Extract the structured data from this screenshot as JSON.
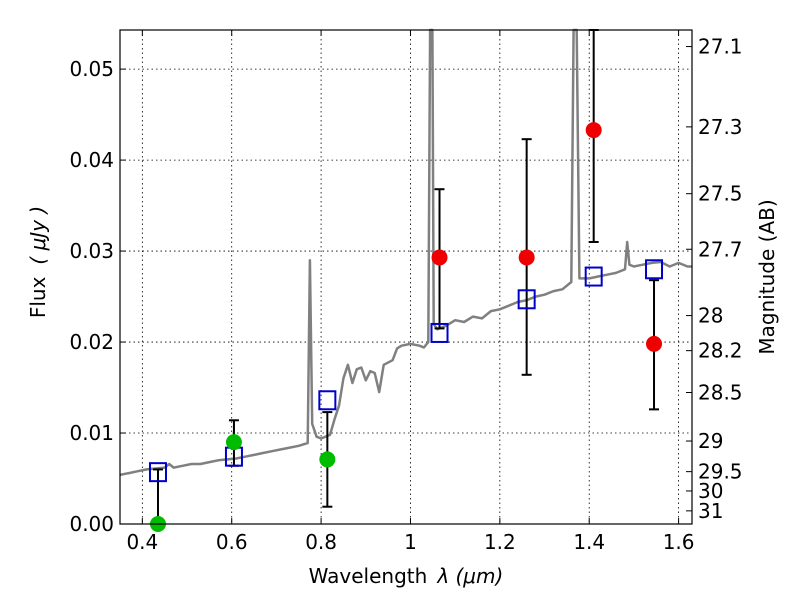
{
  "chart_data": {
    "type": "scatter",
    "title": "",
    "xlabel_text": "Wavelength",
    "xlabel_math": "λ (μm)",
    "ylabel_text": "Flux",
    "ylabel_math": "( μJy )",
    "y2label": "Magnitude (AB)",
    "xlim": [
      0.35,
      1.63
    ],
    "ylim": [
      0.0,
      0.0543
    ],
    "grid": true,
    "x_ticks": [
      0.4,
      0.6,
      0.8,
      1.0,
      1.2,
      1.4,
      1.6
    ],
    "x_tick_labels": [
      "0.4",
      "0.6",
      "0.8",
      "1",
      "1.2",
      "1.4",
      "1.6"
    ],
    "y_ticks": [
      0.0,
      0.01,
      0.02,
      0.03,
      0.04,
      0.05
    ],
    "y_tick_labels": [
      "0.00",
      "0.01",
      "0.02",
      "0.03",
      "0.04",
      "0.05"
    ],
    "y2_ticks": [
      31,
      30,
      29.5,
      29,
      28.5,
      28.2,
      28,
      27.7,
      27.5,
      27.3,
      27.1
    ],
    "y2_tick_labels": [
      "31",
      "30",
      "29.5",
      "29",
      "28.5",
      "28.2",
      "28",
      "27.7",
      "27.5",
      "27.3",
      "27.1"
    ],
    "series": [
      {
        "kind": "spectrum",
        "color": "#808080",
        "points": [
          [
            0.35,
            0.0054
          ],
          [
            0.37,
            0.0056
          ],
          [
            0.39,
            0.0058
          ],
          [
            0.41,
            0.006
          ],
          [
            0.43,
            0.0061
          ],
          [
            0.45,
            0.0062
          ],
          [
            0.46,
            0.0066
          ],
          [
            0.47,
            0.0062
          ],
          [
            0.49,
            0.0064
          ],
          [
            0.51,
            0.0066
          ],
          [
            0.53,
            0.0066
          ],
          [
            0.55,
            0.0068
          ],
          [
            0.57,
            0.007
          ],
          [
            0.59,
            0.0071
          ],
          [
            0.61,
            0.0072
          ],
          [
            0.63,
            0.0074
          ],
          [
            0.65,
            0.0076
          ],
          [
            0.67,
            0.0078
          ],
          [
            0.69,
            0.008
          ],
          [
            0.71,
            0.0082
          ],
          [
            0.73,
            0.0084
          ],
          [
            0.75,
            0.0086
          ],
          [
            0.77,
            0.0089
          ],
          [
            0.775,
            0.029
          ],
          [
            0.78,
            0.011
          ],
          [
            0.79,
            0.0096
          ],
          [
            0.8,
            0.0094
          ],
          [
            0.82,
            0.0098
          ],
          [
            0.83,
            0.0115
          ],
          [
            0.84,
            0.013
          ],
          [
            0.85,
            0.016
          ],
          [
            0.86,
            0.0175
          ],
          [
            0.87,
            0.0155
          ],
          [
            0.88,
            0.017
          ],
          [
            0.89,
            0.0172
          ],
          [
            0.9,
            0.0158
          ],
          [
            0.91,
            0.0168
          ],
          [
            0.92,
            0.0166
          ],
          [
            0.93,
            0.0145
          ],
          [
            0.94,
            0.0175
          ],
          [
            0.96,
            0.018
          ],
          [
            0.97,
            0.0193
          ],
          [
            0.98,
            0.0196
          ],
          [
            1.0,
            0.0198
          ],
          [
            1.02,
            0.0196
          ],
          [
            1.03,
            0.0194
          ],
          [
            1.04,
            0.02
          ],
          [
            1.044,
            0.0543
          ],
          [
            1.049,
            0.0543
          ],
          [
            1.052,
            0.022
          ],
          [
            1.06,
            0.0214
          ],
          [
            1.08,
            0.0218
          ],
          [
            1.1,
            0.0224
          ],
          [
            1.12,
            0.0222
          ],
          [
            1.14,
            0.0228
          ],
          [
            1.16,
            0.0226
          ],
          [
            1.18,
            0.0234
          ],
          [
            1.2,
            0.0236
          ],
          [
            1.22,
            0.024
          ],
          [
            1.24,
            0.0244
          ],
          [
            1.26,
            0.0246
          ],
          [
            1.28,
            0.025
          ],
          [
            1.3,
            0.0252
          ],
          [
            1.32,
            0.0256
          ],
          [
            1.34,
            0.0258
          ],
          [
            1.36,
            0.0266
          ],
          [
            1.365,
            0.0543
          ],
          [
            1.372,
            0.0543
          ],
          [
            1.378,
            0.027
          ],
          [
            1.4,
            0.027
          ],
          [
            1.42,
            0.0272
          ],
          [
            1.44,
            0.0274
          ],
          [
            1.46,
            0.0276
          ],
          [
            1.48,
            0.028
          ],
          [
            1.485,
            0.031
          ],
          [
            1.49,
            0.0285
          ],
          [
            1.5,
            0.0283
          ],
          [
            1.52,
            0.0285
          ],
          [
            1.54,
            0.0287
          ],
          [
            1.56,
            0.0288
          ],
          [
            1.58,
            0.0283
          ],
          [
            1.6,
            0.0287
          ],
          [
            1.62,
            0.0283
          ],
          [
            1.63,
            0.0283
          ]
        ]
      },
      {
        "kind": "model-photometry",
        "marker": "open-square",
        "color": "#0000cc",
        "points": [
          [
            0.435,
            0.0057
          ],
          [
            0.605,
            0.0074
          ],
          [
            0.814,
            0.0136
          ],
          [
            1.065,
            0.021
          ],
          [
            1.26,
            0.0247
          ],
          [
            1.41,
            0.0272
          ],
          [
            1.545,
            0.028
          ]
        ]
      },
      {
        "kind": "detections",
        "marker": "filled-circle",
        "color": "#ee0000",
        "points": [
          [
            1.065,
            0.0293,
            0.0215,
            0.0368
          ],
          [
            1.26,
            0.0293,
            0.0164,
            0.0423
          ],
          [
            1.41,
            0.0433,
            0.031,
            0.0543
          ],
          [
            1.545,
            0.0198,
            0.0126,
            0.0268
          ]
        ]
      },
      {
        "kind": "non-detections",
        "marker": "filled-circle",
        "color": "#00bb00",
        "points": [
          [
            0.435,
            0.0,
            0.0,
            0.006
          ],
          [
            0.605,
            0.009,
            0.0064,
            0.0114
          ],
          [
            0.814,
            0.0071,
            0.0019,
            0.0123
          ]
        ]
      }
    ]
  }
}
